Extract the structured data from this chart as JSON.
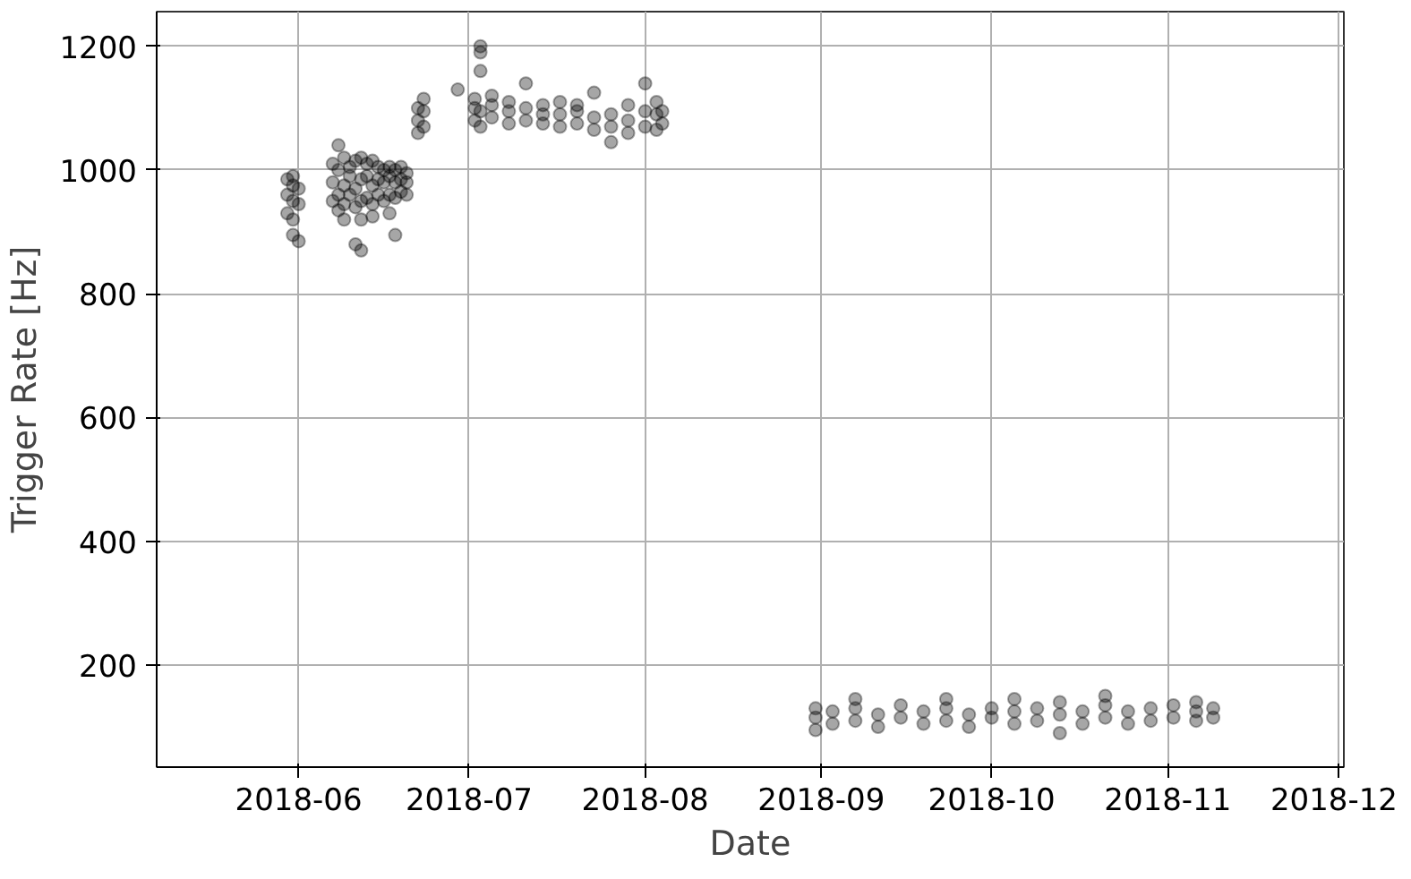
{
  "chart_data": {
    "type": "scatter",
    "xlabel": "Date",
    "ylabel": "Trigger Rate [Hz]",
    "grid": true,
    "marker": "circle",
    "xlim": [
      "2018-05-07",
      "2018-12-02"
    ],
    "xticks": [
      {
        "value": "2018-06-01",
        "label": "2018-06"
      },
      {
        "value": "2018-07-01",
        "label": "2018-07"
      },
      {
        "value": "2018-08-01",
        "label": "2018-08"
      },
      {
        "value": "2018-09-01",
        "label": "2018-09"
      },
      {
        "value": "2018-10-01",
        "label": "2018-10"
      },
      {
        "value": "2018-11-01",
        "label": "2018-11"
      },
      {
        "value": "2018-12-01",
        "label": "2018-12"
      }
    ],
    "ylim": [
      35,
      1256
    ],
    "yticks": [
      200,
      400,
      600,
      800,
      1000,
      1200
    ],
    "series": [
      {
        "color": "#000000",
        "x": [
          "2018-05-30",
          "2018-05-30",
          "2018-05-30",
          "2018-05-31",
          "2018-05-31",
          "2018-05-31",
          "2018-05-31",
          "2018-05-31",
          "2018-06-01",
          "2018-06-01",
          "2018-06-01",
          "2018-06-07",
          "2018-06-07",
          "2018-06-07",
          "2018-06-08",
          "2018-06-08",
          "2018-06-08",
          "2018-06-08",
          "2018-06-09",
          "2018-06-09",
          "2018-06-09",
          "2018-06-09",
          "2018-06-10",
          "2018-06-10",
          "2018-06-10",
          "2018-06-11",
          "2018-06-11",
          "2018-06-11",
          "2018-06-11",
          "2018-06-12",
          "2018-06-12",
          "2018-06-12",
          "2018-06-12",
          "2018-06-12",
          "2018-06-13",
          "2018-06-13",
          "2018-06-13",
          "2018-06-14",
          "2018-06-14",
          "2018-06-14",
          "2018-06-14",
          "2018-06-15",
          "2018-06-15",
          "2018-06-15",
          "2018-06-16",
          "2018-06-16",
          "2018-06-16",
          "2018-06-17",
          "2018-06-17",
          "2018-06-17",
          "2018-06-17",
          "2018-06-18",
          "2018-06-18",
          "2018-06-18",
          "2018-06-18",
          "2018-06-19",
          "2018-06-19",
          "2018-06-19",
          "2018-06-20",
          "2018-06-20",
          "2018-06-20",
          "2018-06-22",
          "2018-06-22",
          "2018-06-22",
          "2018-06-23",
          "2018-06-23",
          "2018-06-23",
          "2018-06-29",
          "2018-07-02",
          "2018-07-02",
          "2018-07-02",
          "2018-07-03",
          "2018-07-03",
          "2018-07-03",
          "2018-07-03",
          "2018-07-03",
          "2018-07-05",
          "2018-07-05",
          "2018-07-05",
          "2018-07-08",
          "2018-07-08",
          "2018-07-08",
          "2018-07-11",
          "2018-07-11",
          "2018-07-11",
          "2018-07-14",
          "2018-07-14",
          "2018-07-14",
          "2018-07-17",
          "2018-07-17",
          "2018-07-17",
          "2018-07-20",
          "2018-07-20",
          "2018-07-20",
          "2018-07-23",
          "2018-07-23",
          "2018-07-23",
          "2018-07-26",
          "2018-07-26",
          "2018-07-26",
          "2018-07-29",
          "2018-07-29",
          "2018-07-29",
          "2018-08-01",
          "2018-08-01",
          "2018-08-01",
          "2018-08-03",
          "2018-08-03",
          "2018-08-03",
          "2018-08-04",
          "2018-08-04",
          "2018-08-31",
          "2018-08-31",
          "2018-08-31",
          "2018-09-03",
          "2018-09-03",
          "2018-09-07",
          "2018-09-07",
          "2018-09-07",
          "2018-09-11",
          "2018-09-11",
          "2018-09-15",
          "2018-09-15",
          "2018-09-19",
          "2018-09-19",
          "2018-09-23",
          "2018-09-23",
          "2018-09-23",
          "2018-09-27",
          "2018-09-27",
          "2018-10-01",
          "2018-10-01",
          "2018-10-05",
          "2018-10-05",
          "2018-10-05",
          "2018-10-09",
          "2018-10-09",
          "2018-10-13",
          "2018-10-13",
          "2018-10-13",
          "2018-10-17",
          "2018-10-17",
          "2018-10-21",
          "2018-10-21",
          "2018-10-21",
          "2018-10-25",
          "2018-10-25",
          "2018-10-29",
          "2018-10-29",
          "2018-11-02",
          "2018-11-02",
          "2018-11-06",
          "2018-11-06",
          "2018-11-06",
          "2018-11-09",
          "2018-11-09"
        ],
        "values": [
          930,
          960,
          985,
          920,
          950,
          975,
          990,
          895,
          945,
          970,
          885,
          950,
          980,
          1010,
          960,
          1000,
          1040,
          935,
          945,
          975,
          1020,
          920,
          960,
          990,
          1005,
          940,
          970,
          1015,
          880,
          950,
          985,
          1020,
          870,
          920,
          955,
          990,
          1010,
          945,
          975,
          1015,
          925,
          960,
          985,
          1005,
          950,
          980,
          1000,
          960,
          990,
          1005,
          930,
          955,
          980,
          1000,
          895,
          965,
          985,
          1005,
          960,
          980,
          995,
          1060,
          1080,
          1100,
          1070,
          1095,
          1115,
          1130,
          1080,
          1100,
          1115,
          1070,
          1095,
          1160,
          1190,
          1200,
          1085,
          1105,
          1120,
          1075,
          1095,
          1110,
          1080,
          1100,
          1140,
          1075,
          1090,
          1105,
          1070,
          1090,
          1110,
          1075,
          1095,
          1105,
          1065,
          1085,
          1125,
          1045,
          1070,
          1090,
          1060,
          1080,
          1105,
          1070,
          1095,
          1140,
          1065,
          1090,
          1110,
          1075,
          1095,
          95,
          115,
          130,
          105,
          125,
          110,
          130,
          145,
          100,
          120,
          115,
          135,
          105,
          125,
          110,
          130,
          145,
          100,
          120,
          115,
          130,
          105,
          125,
          145,
          110,
          130,
          90,
          120,
          140,
          105,
          125,
          115,
          135,
          150,
          105,
          125,
          110,
          130,
          115,
          135,
          110,
          125,
          140,
          115,
          130
        ]
      }
    ]
  }
}
